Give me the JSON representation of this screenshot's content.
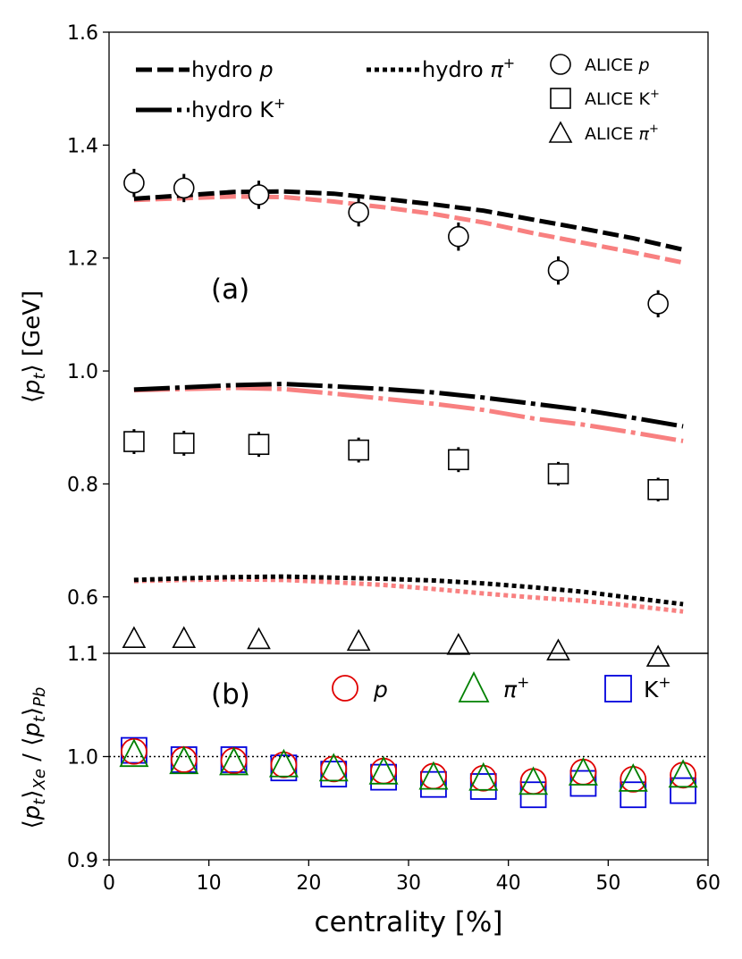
{
  "chart_data": [
    {
      "type": "line",
      "panel_label": "(a)",
      "ylabel_prefix": "⟨",
      "ylabel_var": "p",
      "ylabel_sub": "t",
      "ylabel_suffix": "⟩ [GeV]",
      "ylim": [
        0.5,
        1.6
      ],
      "yticks": [
        "0.6",
        "0.8",
        "1.0",
        "1.2",
        "1.4",
        "1.6"
      ],
      "ytick_values": [
        0.6,
        0.8,
        1.0,
        1.2,
        1.4,
        1.6
      ],
      "legend": {
        "hydro_p": "hydro ",
        "hydro_p_var": "p",
        "hydro_k": "hydro K",
        "hydro_k_sup": "+",
        "hydro_pi": "hydro ",
        "hydro_pi_var": "π",
        "hydro_pi_sup": "+",
        "alice_p": "ALICE ",
        "alice_p_var": "p",
        "alice_k": "ALICE K",
        "alice_k_sup": "+",
        "alice_pi": "ALICE ",
        "alice_pi_var": "π",
        "alice_pi_sup": "+"
      },
      "hydro_x": [
        2.5,
        7.5,
        12.5,
        17.5,
        22.5,
        27.5,
        32.5,
        37.5,
        42.5,
        47.5,
        52.5,
        57.5
      ],
      "series": [
        {
          "name": "hydro p (Xe, black)",
          "style": "dashed",
          "color": "#000000",
          "values": [
            1.305,
            1.311,
            1.317,
            1.318,
            1.314,
            1.305,
            1.295,
            1.284,
            1.268,
            1.252,
            1.235,
            1.215
          ]
        },
        {
          "name": "hydro p (Pb, red)",
          "style": "dashed",
          "color": "#f88080",
          "values": [
            1.303,
            1.306,
            1.309,
            1.308,
            1.3,
            1.29,
            1.278,
            1.263,
            1.244,
            1.227,
            1.21,
            1.192
          ]
        },
        {
          "name": "hydro K+ (Xe, black)",
          "style": "dashdot",
          "color": "#000000",
          "values": [
            0.967,
            0.971,
            0.975,
            0.977,
            0.973,
            0.968,
            0.962,
            0.953,
            0.942,
            0.931,
            0.917,
            0.902
          ]
        },
        {
          "name": "hydro K+ (Pb, red)",
          "style": "dashdot",
          "color": "#f88080",
          "values": [
            0.966,
            0.968,
            0.97,
            0.968,
            0.96,
            0.951,
            0.942,
            0.931,
            0.916,
            0.905,
            0.891,
            0.876
          ]
        },
        {
          "name": "hydro π+ (Xe, black)",
          "style": "dotted",
          "color": "#000000",
          "values": [
            0.63,
            0.633,
            0.635,
            0.636,
            0.634,
            0.632,
            0.629,
            0.624,
            0.617,
            0.609,
            0.598,
            0.587
          ]
        },
        {
          "name": "hydro π+ (Pb, red)",
          "style": "dotted",
          "color": "#f88080",
          "values": [
            0.628,
            0.63,
            0.631,
            0.63,
            0.626,
            0.621,
            0.614,
            0.606,
            0.599,
            0.593,
            0.584,
            0.574
          ]
        }
      ],
      "alice_x": [
        2.5,
        7.5,
        15,
        25,
        35,
        45,
        55
      ],
      "alice": [
        {
          "name": "ALICE p",
          "marker": "circle",
          "values": [
            1.333,
            1.324,
            1.312,
            1.281,
            1.238,
            1.178,
            1.119
          ],
          "errors": [
            0.025,
            0.025,
            0.025,
            0.025,
            0.025,
            0.025,
            0.024
          ]
        },
        {
          "name": "ALICE K+",
          "marker": "square",
          "values": [
            0.875,
            0.872,
            0.87,
            0.86,
            0.843,
            0.818,
            0.79
          ],
          "errors": [
            0.022,
            0.022,
            0.022,
            0.022,
            0.022,
            0.021,
            0.021
          ]
        },
        {
          "name": "ALICE π+",
          "marker": "triangle",
          "values": [
            0.525,
            0.525,
            0.523,
            0.52,
            0.513,
            0.503,
            0.492
          ],
          "errors": [
            0.009,
            0.009,
            0.009,
            0.009,
            0.009,
            0.009,
            0.009
          ]
        }
      ]
    },
    {
      "type": "scatter",
      "panel_label": "(b)",
      "ylabel": "⟨p_t⟩_Xe / ⟨p_t⟩_Pb",
      "ylabel_a": "⟨",
      "ylabel_b": "p",
      "ylabel_c": "t",
      "ylabel_d": "⟩",
      "ylabel_e": "Xe",
      "ylabel_f": " / ⟨",
      "ylabel_g": "p",
      "ylabel_h": "t",
      "ylabel_i": "⟩",
      "ylabel_j": "Pb",
      "ylim": [
        0.9,
        1.1
      ],
      "yticks": [
        "0.9",
        "1.0",
        "1.1"
      ],
      "ytick_values": [
        0.9,
        1.0,
        1.1
      ],
      "reference_line": 1.0,
      "x": [
        2.5,
        7.5,
        12.5,
        17.5,
        22.5,
        27.5,
        32.5,
        37.5,
        42.5,
        47.5,
        52.5,
        57.5
      ],
      "legend": {
        "p": "p",
        "pi": "π",
        "pi_sup": "+",
        "k": "K",
        "k_sup": "+"
      },
      "series": [
        {
          "name": "K+",
          "marker": "square",
          "color": "#0000dd",
          "values": [
            1.006,
            0.997,
            0.997,
            0.989,
            0.983,
            0.98,
            0.973,
            0.971,
            0.963,
            0.974,
            0.963,
            0.967
          ]
        },
        {
          "name": "p",
          "marker": "circle",
          "color": "#e00000",
          "values": [
            1.005,
            0.997,
            0.996,
            0.992,
            0.988,
            0.986,
            0.981,
            0.979,
            0.976,
            0.985,
            0.978,
            0.982
          ]
        },
        {
          "name": "π+",
          "marker": "triangle",
          "color": "#008000",
          "values": [
            1.002,
            0.995,
            0.994,
            0.992,
            0.988,
            0.985,
            0.98,
            0.979,
            0.975,
            0.984,
            0.978,
            0.982
          ]
        }
      ]
    }
  ],
  "x_axis": {
    "label": "centrality [%]",
    "xlim": [
      0,
      60
    ],
    "ticks": [
      "0",
      "10",
      "20",
      "30",
      "40",
      "50",
      "60"
    ],
    "tick_values": [
      0,
      10,
      20,
      30,
      40,
      50,
      60
    ]
  }
}
